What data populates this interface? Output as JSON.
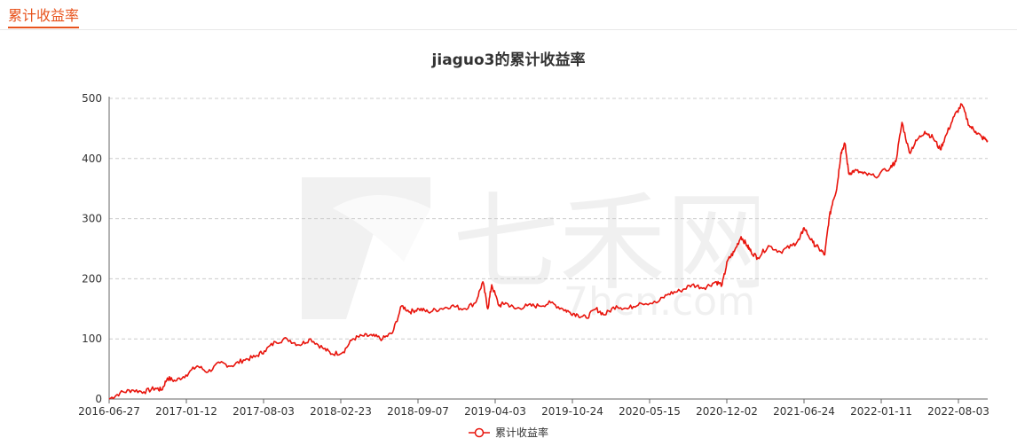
{
  "header": {
    "section_title": "累计收益率"
  },
  "watermark": {
    "brand": "七禾网",
    "url": "7hcn.com"
  },
  "chart_data": {
    "type": "line",
    "title": "jiaguo3的累计收益率",
    "xlabel": "",
    "ylabel": "",
    "ylim": [
      0,
      500
    ],
    "yticks": [
      0,
      100,
      200,
      300,
      400,
      500
    ],
    "x_tick_labels": [
      "2016-06-27",
      "2017-01-12",
      "2017-08-03",
      "2018-02-23",
      "2018-09-07",
      "2019-04-03",
      "2019-10-24",
      "2020-05-15",
      "2020-12-02",
      "2021-06-24",
      "2022-01-11",
      "2022-08-03"
    ],
    "grid": true,
    "legend_placement": "bottom",
    "colors": {
      "series": "#e8140c",
      "grid": "#cccccc",
      "axis": "#666666"
    },
    "series": [
      {
        "name": "累计收益率",
        "x": [
          "2016-06-27",
          "2016-07-25",
          "2016-08-25",
          "2016-09-25",
          "2016-10-25",
          "2016-11-10",
          "2016-11-25",
          "2016-12-15",
          "2017-01-12",
          "2017-02-10",
          "2017-03-10",
          "2017-04-10",
          "2017-05-10",
          "2017-06-10",
          "2017-07-10",
          "2017-08-03",
          "2017-09-01",
          "2017-10-01",
          "2017-11-01",
          "2017-12-01",
          "2018-01-01",
          "2018-01-25",
          "2018-02-23",
          "2018-03-20",
          "2018-04-15",
          "2018-05-10",
          "2018-06-05",
          "2018-07-01",
          "2018-07-25",
          "2018-08-15",
          "2018-09-07",
          "2018-10-01",
          "2018-11-01",
          "2018-12-01",
          "2019-01-01",
          "2019-02-01",
          "2019-02-20",
          "2019-03-05",
          "2019-03-15",
          "2019-04-03",
          "2019-04-20",
          "2019-05-15",
          "2019-06-15",
          "2019-07-15",
          "2019-08-15",
          "2019-09-15",
          "2019-10-01",
          "2019-10-24",
          "2019-11-15",
          "2019-12-10",
          "2020-01-01",
          "2020-02-01",
          "2020-03-01",
          "2020-04-01",
          "2020-05-15",
          "2020-06-15",
          "2020-07-15",
          "2020-08-15",
          "2020-09-15",
          "2020-10-15",
          "2020-11-01",
          "2020-11-15",
          "2020-12-02",
          "2020-12-20",
          "2021-01-05",
          "2021-01-15",
          "2021-02-01",
          "2021-03-01",
          "2021-04-01",
          "2021-05-01",
          "2021-05-20",
          "2021-06-01",
          "2021-06-24",
          "2021-07-10",
          "2021-07-25",
          "2021-08-05",
          "2021-08-15",
          "2021-08-25",
          "2021-09-05",
          "2021-09-15",
          "2021-09-25",
          "2021-10-10",
          "2021-11-01",
          "2021-12-01",
          "2022-01-11",
          "2022-01-25",
          "2022-02-10",
          "2022-03-01",
          "2022-03-20",
          "2022-04-10",
          "2022-05-01",
          "2022-05-20",
          "2022-06-05",
          "2022-06-25",
          "2022-07-15",
          "2022-08-03",
          "2022-08-20",
          "2022-09-05",
          "2022-09-20"
        ],
        "values": [
          0,
          10,
          15,
          12,
          18,
          15,
          35,
          30,
          40,
          55,
          45,
          60,
          55,
          65,
          70,
          80,
          95,
          100,
          90,
          100,
          85,
          75,
          78,
          100,
          105,
          105,
          100,
          110,
          155,
          145,
          150,
          145,
          150,
          155,
          150,
          160,
          195,
          150,
          190,
          155,
          160,
          150,
          155,
          155,
          160,
          150,
          145,
          140,
          135,
          150,
          140,
          155,
          150,
          160,
          160,
          175,
          180,
          190,
          185,
          195,
          190,
          230,
          245,
          270,
          255,
          245,
          235,
          255,
          245,
          255,
          265,
          285,
          260,
          250,
          240,
          300,
          330,
          350,
          410,
          425,
          375,
          380,
          375,
          370,
          385,
          395,
          460,
          410,
          430,
          445,
          435,
          415,
          440,
          470,
          490,
          455,
          445,
          435,
          430
        ]
      }
    ]
  },
  "legend": {
    "label": "累计收益率"
  }
}
